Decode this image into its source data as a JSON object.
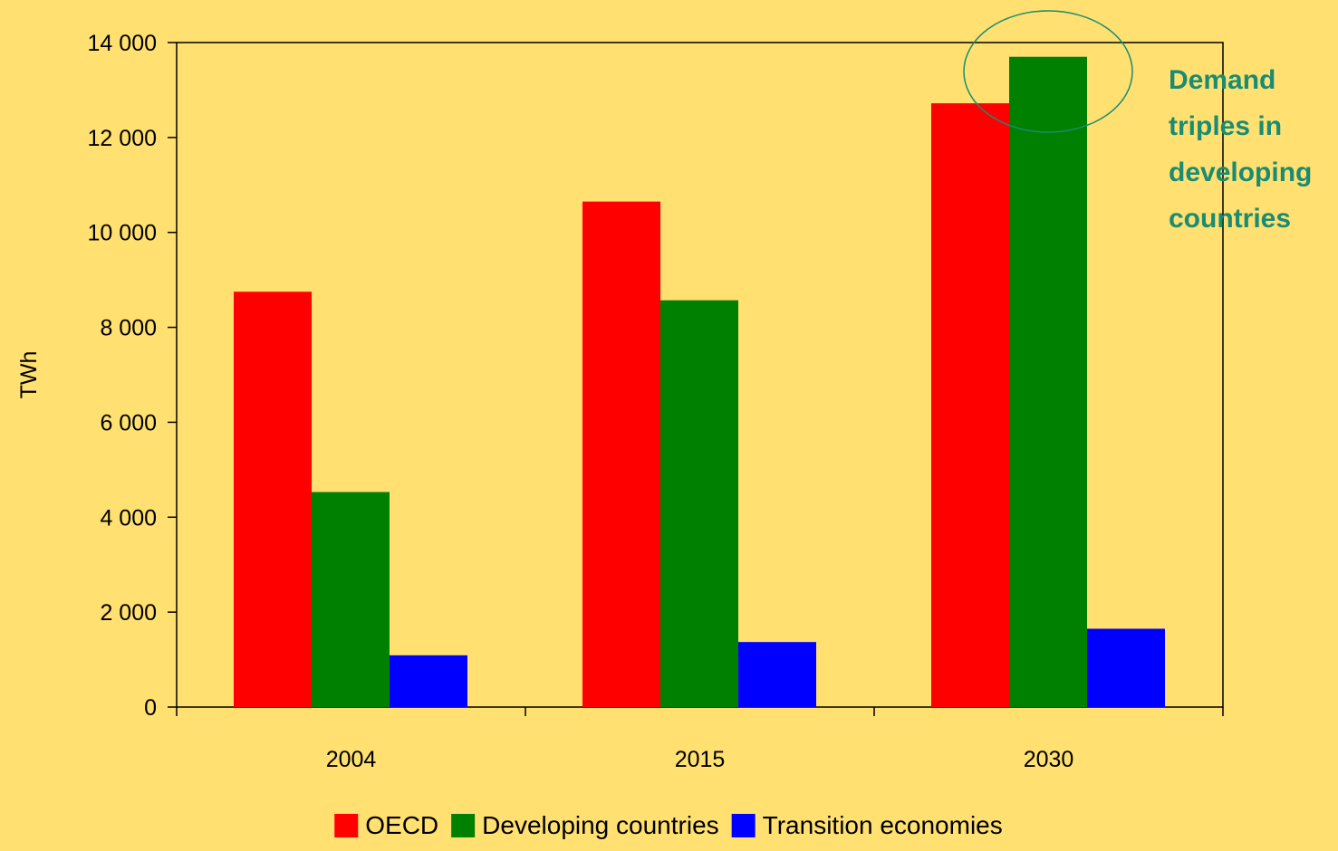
{
  "chart_data": {
    "type": "bar",
    "categories": [
      "2004",
      "2015",
      "2030"
    ],
    "series": [
      {
        "name": "OECD",
        "color": "#FF0000",
        "values": [
          8750,
          10650,
          12720
        ]
      },
      {
        "name": "Developing countries",
        "color": "#008000",
        "values": [
          4530,
          8570,
          13700
        ]
      },
      {
        "name": "Transition economies",
        "color": "#0000FF",
        "values": [
          1090,
          1370,
          1650
        ]
      }
    ],
    "ylabel": "TWh",
    "ylim": [
      0,
      14000
    ],
    "yticks": [
      0,
      2000,
      4000,
      6000,
      8000,
      10000,
      12000,
      14000
    ],
    "ytick_labels": [
      "0",
      "2 000",
      "4 000",
      "6 000",
      "8 000",
      "10 000",
      "12 000",
      "14 000"
    ],
    "grid": false,
    "legend_position": "bottom",
    "annotation": {
      "lines": [
        "Demand",
        "triples in",
        "developing",
        "countries"
      ],
      "color": "#1A8C73"
    }
  }
}
